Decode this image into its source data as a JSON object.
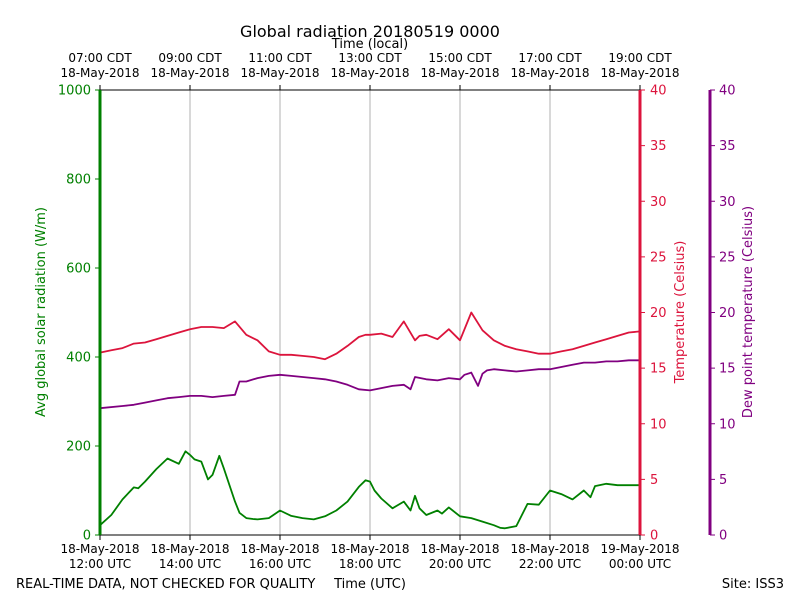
{
  "chart_data": {
    "type": "line",
    "title": "Global radiation 20180519 0000",
    "top_axis_label": "Time (local)",
    "xlabel": "Time (UTC)",
    "footer_left": "REAL-TIME DATA, NOT CHECKED FOR QUALITY",
    "footer_right": "Site: ISS3",
    "x_range_hours": [
      0,
      12
    ],
    "x_ticks": [
      {
        "hour": 0,
        "utc": [
          "18-May-2018",
          "12:00 UTC"
        ],
        "local": [
          "07:00 CDT",
          "18-May-2018"
        ]
      },
      {
        "hour": 2,
        "utc": [
          "18-May-2018",
          "14:00 UTC"
        ],
        "local": [
          "09:00 CDT",
          "18-May-2018"
        ]
      },
      {
        "hour": 4,
        "utc": [
          "18-May-2018",
          "16:00 UTC"
        ],
        "local": [
          "11:00 CDT",
          "18-May-2018"
        ]
      },
      {
        "hour": 6,
        "utc": [
          "18-May-2018",
          "18:00 UTC"
        ],
        "local": [
          "13:00 CDT",
          "18-May-2018"
        ]
      },
      {
        "hour": 8,
        "utc": [
          "18-May-2018",
          "20:00 UTC"
        ],
        "local": [
          "15:00 CDT",
          "18-May-2018"
        ]
      },
      {
        "hour": 10,
        "utc": [
          "18-May-2018",
          "22:00 UTC"
        ],
        "local": [
          "17:00 CDT",
          "18-May-2018"
        ]
      },
      {
        "hour": 12,
        "utc": [
          "19-May-2018",
          "00:00 UTC"
        ],
        "local": [
          "19:00 CDT",
          "18-May-2018"
        ]
      }
    ],
    "axes": {
      "left": {
        "label": "Avg global solar radiation (W/m)",
        "range": [
          0,
          1000
        ],
        "ticks": [
          "0",
          "200",
          "400",
          "600",
          "800",
          "1000"
        ],
        "color": "#008000"
      },
      "right1": {
        "label": "Temperature (Celsius)",
        "range": [
          0,
          40
        ],
        "ticks": [
          "0",
          "5",
          "10",
          "15",
          "20",
          "25",
          "30",
          "35",
          "40"
        ],
        "color": "#dc143c"
      },
      "right2": {
        "label": "Dew point temperature (Celsius)",
        "range": [
          0,
          40
        ],
        "ticks": [
          "0",
          "5",
          "10",
          "15",
          "20",
          "25",
          "30",
          "35",
          "40"
        ],
        "color": "#800080"
      }
    },
    "series": [
      {
        "name": "Global radiation",
        "axis": "left",
        "color": "#008000",
        "x": [
          0,
          0.25,
          0.5,
          0.75,
          0.85,
          1.0,
          1.25,
          1.5,
          1.75,
          1.9,
          2.0,
          2.1,
          2.25,
          2.4,
          2.5,
          2.65,
          2.75,
          3.0,
          3.1,
          3.25,
          3.4,
          3.5,
          3.75,
          4.0,
          4.25,
          4.5,
          4.75,
          5.0,
          5.25,
          5.5,
          5.75,
          5.9,
          6.0,
          6.1,
          6.25,
          6.5,
          6.75,
          6.9,
          7.0,
          7.1,
          7.25,
          7.5,
          7.6,
          7.75,
          8.0,
          8.25,
          8.5,
          8.75,
          8.9,
          9.0,
          9.25,
          9.5,
          9.75,
          10.0,
          10.25,
          10.5,
          10.75,
          10.9,
          11.0,
          11.25,
          11.5,
          11.75,
          12.0
        ],
        "values": [
          22,
          45,
          80,
          107,
          105,
          120,
          148,
          172,
          160,
          188,
          180,
          170,
          165,
          125,
          135,
          178,
          150,
          75,
          50,
          38,
          36,
          35,
          38,
          55,
          43,
          38,
          35,
          42,
          55,
          75,
          108,
          123,
          120,
          100,
          82,
          60,
          75,
          55,
          88,
          60,
          45,
          55,
          48,
          62,
          42,
          38,
          30,
          22,
          16,
          15,
          20,
          70,
          68,
          100,
          92,
          80,
          100,
          85,
          110,
          115,
          112,
          112,
          112
        ]
      },
      {
        "name": "Temperature",
        "axis": "right1",
        "color": "#dc143c",
        "x": [
          0,
          0.25,
          0.5,
          0.75,
          1.0,
          1.25,
          1.5,
          1.75,
          2.0,
          2.25,
          2.5,
          2.75,
          3.0,
          3.25,
          3.5,
          3.75,
          4.0,
          4.25,
          4.5,
          4.75,
          5.0,
          5.25,
          5.5,
          5.75,
          5.9,
          6.0,
          6.25,
          6.5,
          6.75,
          7.0,
          7.1,
          7.25,
          7.5,
          7.75,
          8.0,
          8.25,
          8.5,
          8.75,
          9.0,
          9.25,
          9.5,
          9.75,
          10.0,
          10.25,
          10.5,
          10.75,
          11.0,
          11.25,
          11.5,
          11.75,
          12.0
        ],
        "values": [
          16.4,
          16.6,
          16.8,
          17.2,
          17.3,
          17.6,
          17.9,
          18.2,
          18.5,
          18.7,
          18.7,
          18.6,
          19.2,
          18.0,
          17.5,
          16.5,
          16.2,
          16.2,
          16.1,
          16.0,
          15.8,
          16.3,
          17.0,
          17.8,
          18.0,
          18.0,
          18.1,
          17.8,
          19.2,
          17.5,
          17.9,
          18.0,
          17.6,
          18.5,
          17.5,
          20.0,
          18.4,
          17.5,
          17.0,
          16.7,
          16.5,
          16.3,
          16.3,
          16.5,
          16.7,
          17.0,
          17.3,
          17.6,
          17.9,
          18.2,
          18.3
        ]
      },
      {
        "name": "Dew point temperature",
        "axis": "right2",
        "color": "#800080",
        "x": [
          0,
          0.5,
          0.75,
          1.0,
          1.25,
          1.5,
          1.75,
          2.0,
          2.25,
          2.5,
          2.75,
          3.0,
          3.1,
          3.25,
          3.5,
          3.75,
          4.0,
          4.25,
          4.5,
          4.75,
          5.0,
          5.25,
          5.5,
          5.75,
          6.0,
          6.25,
          6.5,
          6.75,
          6.9,
          7.0,
          7.25,
          7.5,
          7.75,
          8.0,
          8.1,
          8.25,
          8.4,
          8.5,
          8.6,
          8.75,
          9.0,
          9.25,
          9.5,
          9.75,
          10.0,
          10.25,
          10.5,
          10.75,
          11.0,
          11.25,
          11.5,
          11.75,
          12.0
        ],
        "values": [
          11.4,
          11.6,
          11.7,
          11.9,
          12.1,
          12.3,
          12.4,
          12.5,
          12.5,
          12.4,
          12.5,
          12.6,
          13.8,
          13.8,
          14.1,
          14.3,
          14.4,
          14.3,
          14.2,
          14.1,
          14.0,
          13.8,
          13.5,
          13.1,
          13.0,
          13.2,
          13.4,
          13.5,
          13.1,
          14.2,
          14.0,
          13.9,
          14.1,
          14.0,
          14.4,
          14.6,
          13.4,
          14.5,
          14.8,
          14.9,
          14.8,
          14.7,
          14.8,
          14.9,
          14.9,
          15.1,
          15.3,
          15.5,
          15.5,
          15.6,
          15.6,
          15.7,
          15.7
        ]
      }
    ]
  }
}
